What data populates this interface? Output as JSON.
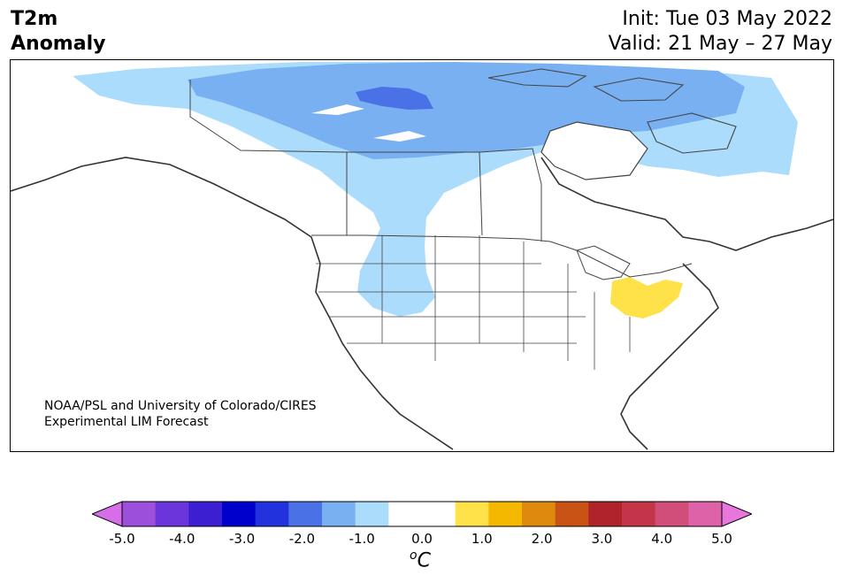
{
  "header": {
    "title_line1": "T2m",
    "title_line2": "Anomaly",
    "init": "Init: Tue 03 May 2022",
    "valid": "Valid: 21 May – 27 May"
  },
  "map": {
    "credit_line1": "NOAA/PSL and University of Colorado/CIRES",
    "credit_line2": "Experimental LIM Forecast",
    "regions": [
      {
        "name": "cold-anomaly-north-canada",
        "level": "-1.0 to -2.0"
      },
      {
        "name": "strong-cold-anomaly-nunavut",
        "level": "-2.0 to -2.5"
      },
      {
        "name": "cool-anomaly-western-canada-rockies",
        "level": "-0.5 to -1.0"
      },
      {
        "name": "warm-anomaly-ohio-valley",
        "level": "0.5 to 1.0"
      }
    ]
  },
  "colorbar": {
    "unit_base": "C",
    "unit_sup": "o",
    "ticks": [
      "-5.0",
      "-4.0",
      "-3.0",
      "-2.0",
      "-1.0",
      "0.0",
      "1.0",
      "2.0",
      "3.0",
      "4.0",
      "5.0"
    ],
    "colors": [
      "#d66ee8",
      "#9b4fdb",
      "#6a36db",
      "#3b1fd1",
      "#0000cc",
      "#2233dd",
      "#4a72e6",
      "#78b0f2",
      "#acdcfb",
      "#ffffff",
      "#ffffff",
      "#ffe14a",
      "#f5b800",
      "#de8a0f",
      "#c95215",
      "#b0232a",
      "#c4354a",
      "#d14e7a",
      "#de62a8",
      "#e777dc"
    ]
  }
}
